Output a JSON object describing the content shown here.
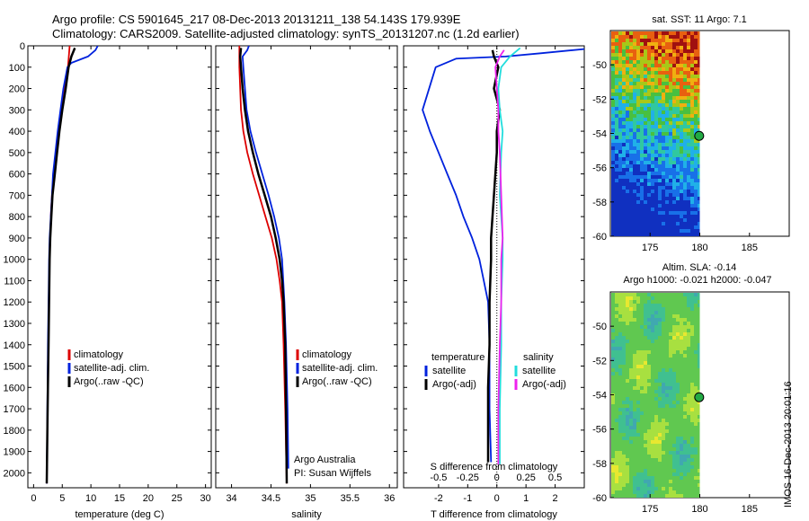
{
  "header": {
    "line1": "Argo profile: CS 5901645_217 08-Dec-2013 20131211_138 54.143S 179.939E",
    "line2": "Climatology: CARS2009. Satellite-adjusted climatology: synTS_20131207.nc (1.2d earlier)"
  },
  "footer_stamp": "IMOS 16-Dec-2013 20:01:16",
  "colors": {
    "clim": "#dd0000",
    "sat": "#0022dd",
    "argo": "#000000",
    "sat_s": "#22dddd",
    "argo_s": "#ee22ee"
  },
  "chart_data": [
    {
      "type": "line",
      "xlabel": "temperature (deg C)",
      "xlim": [
        -1,
        31
      ],
      "xticks": [
        0,
        5,
        10,
        15,
        20,
        25,
        30
      ],
      "ylim": [
        2070,
        0
      ],
      "yticks": [
        0,
        100,
        200,
        300,
        400,
        500,
        600,
        700,
        800,
        900,
        1000,
        1100,
        1200,
        1300,
        1400,
        1500,
        1600,
        1700,
        1800,
        1900,
        2000
      ],
      "legend": [
        "climatology",
        "satellite-adj. clim.",
        "Argo(..raw -QC)"
      ],
      "series": [
        {
          "name": "climatology",
          "color": "#dd0000",
          "x": [
            6.3,
            6.0,
            5.3,
            4.8,
            4.3,
            3.9,
            3.5,
            3.2,
            3.0,
            2.9,
            2.8,
            2.7,
            2.6,
            2.5,
            2.4,
            2.3
          ],
          "y": [
            0,
            100,
            200,
            300,
            400,
            500,
            600,
            700,
            800,
            900,
            1000,
            1200,
            1400,
            1600,
            1800,
            2050
          ]
        },
        {
          "name": "satellite-adj. clim.",
          "color": "#0022dd",
          "x": [
            11.2,
            10.8,
            9.5,
            6.6,
            5.9,
            5.2,
            4.7,
            4.2,
            3.8,
            3.4,
            3.2,
            3.0,
            2.8,
            2.7,
            2.6,
            2.5,
            2.4,
            2.3
          ],
          "y": [
            0,
            20,
            50,
            80,
            100,
            200,
            300,
            400,
            500,
            600,
            700,
            800,
            900,
            1000,
            1200,
            1400,
            1700,
            2050
          ]
        },
        {
          "name": "Argo(..raw -QC)",
          "color": "#000000",
          "x": [
            7.2,
            6.6,
            6.1,
            5.6,
            5.0,
            4.5,
            4.1,
            3.7,
            3.3,
            3.1,
            2.9,
            2.8,
            2.7,
            2.6,
            2.5,
            2.4,
            2.3
          ],
          "y": [
            10,
            50,
            100,
            200,
            300,
            400,
            500,
            600,
            700,
            800,
            900,
            1000,
            1200,
            1400,
            1600,
            1800,
            2050
          ]
        }
      ]
    },
    {
      "type": "line",
      "xlabel": "salinity",
      "xlim": [
        33.8,
        36.1
      ],
      "xticks": [
        34,
        34.5,
        35,
        35.5,
        36
      ],
      "ylim": [
        2070,
        0
      ],
      "legend": [
        "climatology",
        "satellite-adj. clim.",
        "Argo(..raw -QC)"
      ],
      "annotations": [
        "Argo Australia",
        "PI: Susan Wijffels"
      ],
      "series": [
        {
          "name": "climatology",
          "color": "#dd0000",
          "x": [
            34.1,
            34.1,
            34.11,
            34.12,
            34.15,
            34.2,
            34.27,
            34.35,
            34.43,
            34.51,
            34.57,
            34.61,
            34.64,
            34.66,
            34.68,
            34.7
          ],
          "y": [
            0,
            100,
            200,
            300,
            400,
            500,
            600,
            700,
            800,
            900,
            1000,
            1100,
            1200,
            1400,
            1700,
            2050
          ]
        },
        {
          "name": "satellite-adj. clim.",
          "color": "#0022dd",
          "x": [
            34.22,
            34.2,
            34.14,
            34.15,
            34.17,
            34.19,
            34.24,
            34.31,
            34.39,
            34.47,
            34.54,
            34.6,
            34.64,
            34.67,
            34.69,
            34.71,
            34.72
          ],
          "y": [
            0,
            20,
            50,
            100,
            200,
            300,
            400,
            500,
            600,
            700,
            800,
            900,
            1000,
            1200,
            1400,
            1700,
            1980
          ]
        },
        {
          "name": "Argo(..raw -QC)",
          "color": "#000000",
          "x": [
            34.12,
            34.11,
            34.12,
            34.14,
            34.17,
            34.21,
            34.27,
            34.34,
            34.42,
            34.5,
            34.56,
            34.61,
            34.64,
            34.66,
            34.68,
            34.69,
            34.7
          ],
          "y": [
            10,
            50,
            100,
            200,
            300,
            400,
            500,
            600,
            700,
            800,
            900,
            1000,
            1100,
            1200,
            1400,
            1700,
            2050
          ]
        }
      ]
    },
    {
      "type": "line",
      "xlabel": "T difference from climatology",
      "xlabel2": "S difference from climatology",
      "xlim": [
        -3.2,
        3.0
      ],
      "xticks": [
        -2,
        -1,
        0,
        1,
        2
      ],
      "xticks2": [
        -0.5,
        -0.25,
        0,
        0.25,
        0.5
      ],
      "ylim": [
        2070,
        0
      ],
      "legend_titles": [
        "temperature",
        "salinity"
      ],
      "legend": [
        "satellite",
        "Argo(-adj)",
        "satellite",
        "Argo(-adj)"
      ],
      "series": [
        {
          "name": "satellite",
          "group": "temperature",
          "color": "#0022dd",
          "x": [
            3.0,
            1.5,
            0.3,
            -1.4,
            -2.1,
            -2.55,
            -2.3,
            -2.0,
            -1.7,
            -1.4,
            -1.15,
            -0.85,
            -0.6,
            -0.45,
            -0.3,
            -0.25,
            -0.25,
            -0.2
          ],
          "y": [
            15,
            35,
            50,
            60,
            100,
            300,
            400,
            500,
            600,
            700,
            800,
            900,
            1000,
            1100,
            1200,
            1400,
            1700,
            1950
          ]
        },
        {
          "name": "Argo(-adj)",
          "group": "temperature",
          "color": "#000000",
          "x": [
            -0.15,
            -0.1,
            0.05,
            -0.1,
            0.1,
            0.0,
            0.0,
            -0.05,
            -0.1,
            -0.15,
            -0.2,
            -0.2,
            -0.25,
            -0.25,
            -0.3,
            -0.3,
            -0.3
          ],
          "y": [
            20,
            50,
            100,
            200,
            300,
            400,
            500,
            600,
            700,
            800,
            900,
            1000,
            1200,
            1400,
            1600,
            1800,
            1950
          ]
        },
        {
          "name": "satellite",
          "group": "salinity",
          "color": "#22dddd",
          "x": [
            0.8,
            0.45,
            0.15,
            0.05,
            0.1,
            0.2,
            0.15,
            0.1,
            0.15,
            0.2,
            0.2,
            0.15,
            0.15,
            0.1,
            0.1
          ],
          "y": [
            10,
            50,
            100,
            200,
            300,
            400,
            500,
            700,
            800,
            900,
            1000,
            1200,
            1400,
            1700,
            1960
          ]
        },
        {
          "name": "Argo(-adj)",
          "group": "salinity",
          "color": "#ee22ee",
          "x": [
            0.25,
            0.1,
            -0.05,
            0.0,
            0.05,
            0.05,
            0.1,
            0.15,
            0.2,
            0.15,
            0.15,
            0.1,
            0.05,
            0.05
          ],
          "y": [
            20,
            50,
            100,
            200,
            300,
            400,
            500,
            700,
            900,
            1000,
            1200,
            1400,
            1700,
            1960
          ]
        }
      ]
    },
    {
      "type": "heatmap",
      "title": "sat. SST: 11  Argo: 7.1",
      "xlim": [
        171,
        189
      ],
      "ylim": [
        -60,
        -48
      ],
      "xticks": [
        175,
        180,
        185
      ],
      "yticks": [
        -60,
        -58,
        -56,
        -54,
        -52,
        -50
      ],
      "marker": {
        "lon": 179.939,
        "lat": -54.143
      }
    },
    {
      "type": "heatmap",
      "title": "Altim. SLA: -0.14",
      "subtitle": "Argo h1000: -0.021 h2000: -0.047",
      "xlim": [
        171,
        189
      ],
      "ylim": [
        -60,
        -48
      ],
      "xticks": [
        175,
        180,
        185
      ],
      "yticks": [
        -60,
        -58,
        -56,
        -54,
        -52,
        -50
      ],
      "marker": {
        "lon": 179.939,
        "lat": -54.143
      }
    }
  ]
}
